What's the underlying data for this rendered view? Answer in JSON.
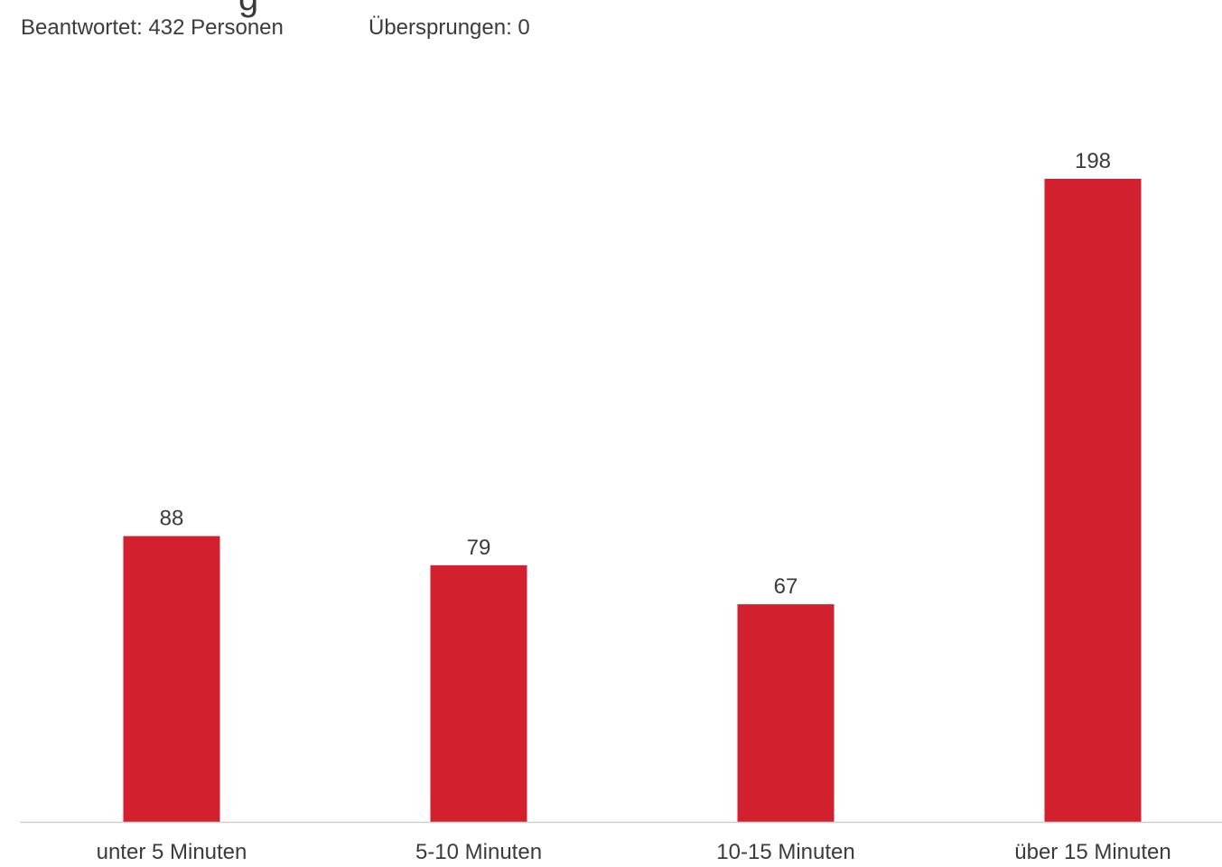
{
  "title_fragment": "g",
  "stats": {
    "answered": "Beantwortet: 432 Personen",
    "skipped": "Übersprungen: 0"
  },
  "colors": {
    "bar": "#d3202f",
    "axis": "#cfcfcf",
    "text": "#3b3b3b"
  },
  "chart_data": {
    "type": "bar",
    "categories": [
      "unter 5 Minuten",
      "5-10 Minuten",
      "10-15 Minuten",
      "über 15 Minuten"
    ],
    "values": [
      88,
      79,
      67,
      198
    ],
    "data_labels": [
      "88",
      "79",
      "67",
      "198"
    ],
    "grid": false,
    "ylim": [
      0,
      198
    ]
  }
}
